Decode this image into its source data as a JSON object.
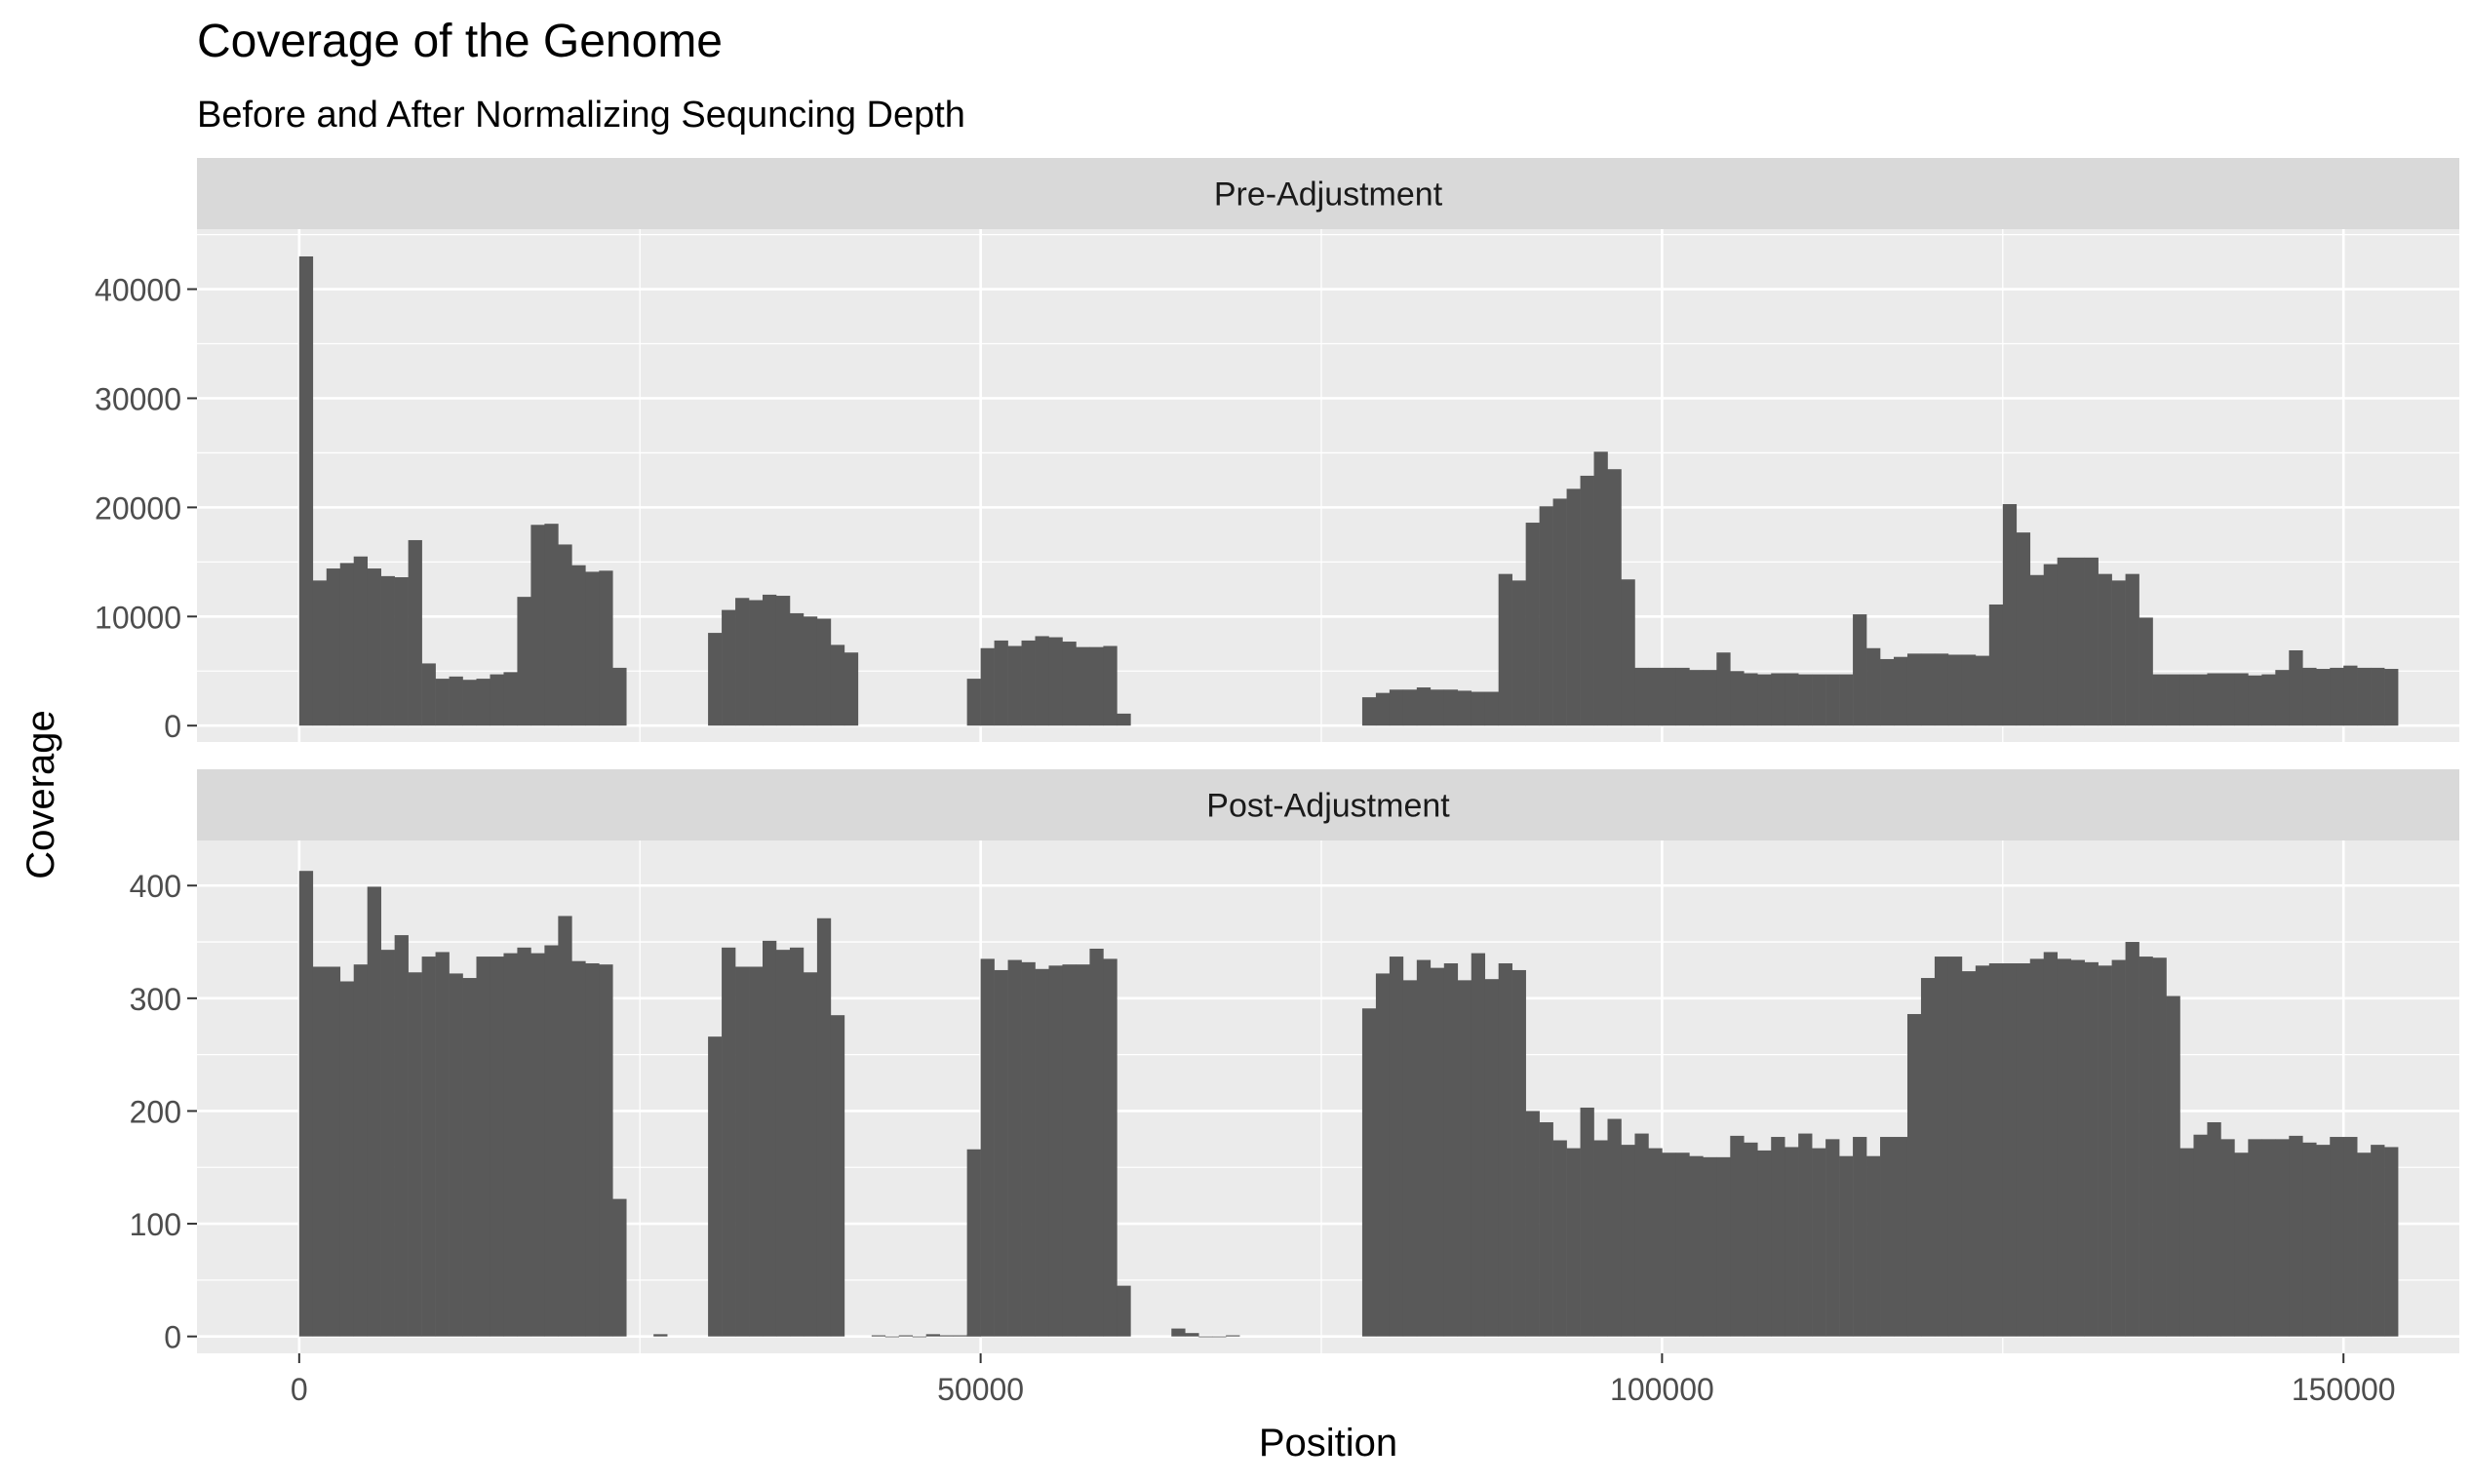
{
  "colors": {
    "panel_background": "#ebebeb",
    "strip_background": "#d9d9d9",
    "grid_line": "#ffffff",
    "bar_fill": "#595959",
    "tick_label": "#4d4d4d",
    "text": "#000000"
  },
  "chart_data": {
    "type": "bar",
    "title": "Coverage of the Genome",
    "subtitle": "Before and After Normalizing Sequncing Depth",
    "xlabel": "Position",
    "ylabel": "Coverage",
    "grid": true,
    "facet_layout": "stacked-vertically",
    "bin_width": 1000,
    "xlim": [
      -7500,
      158500
    ],
    "x_ticks": [
      0,
      50000,
      100000,
      150000
    ],
    "x_tick_labels": [
      "0",
      "50000",
      "100000",
      "150000"
    ],
    "panels": [
      {
        "name": "Pre-Adjustment",
        "ylim": [
          -1500,
          45500
        ],
        "y_ticks": [
          0,
          10000,
          20000,
          30000,
          40000
        ],
        "y_tick_labels": [
          "0",
          "10000",
          "20000",
          "30000",
          "40000"
        ],
        "segments": [
          {
            "x_start": 0,
            "values": [
              43000,
              13300,
              14400,
              14900,
              15500,
              14400,
              13700,
              13600,
              17000,
              5700,
              4300,
              4500,
              4200,
              4300,
              4700,
              4900,
              11800,
              18400,
              18500,
              16600,
              14700,
              14100,
              14200,
              5300
            ]
          },
          {
            "x_start": 30000,
            "values": [
              8500,
              10600,
              11700,
              11500,
              12000,
              11900,
              10300,
              10000,
              9800,
              7400,
              6700
            ]
          },
          {
            "x_start": 49000,
            "values": [
              4300,
              7100,
              7800,
              7300,
              7800,
              8200,
              8100,
              7700,
              7200,
              7200,
              7300,
              1100
            ]
          },
          {
            "x_start": 78000,
            "values": [
              2600,
              3000,
              3300,
              3300,
              3500,
              3300,
              3300,
              3200,
              3100,
              3100,
              13900,
              13300,
              18600,
              20100,
              20800,
              21700,
              22900,
              25100,
              23500,
              13400,
              5300,
              5300,
              5300,
              5300,
              5100,
              5100,
              6700,
              5000,
              4800,
              4700,
              4800,
              4800,
              4700,
              4700,
              4700,
              4700,
              10200,
              7100,
              6100,
              6300,
              6600,
              6600,
              6600,
              6500,
              6500,
              6400,
              11100,
              20300,
              17700,
              13800,
              14800,
              15400,
              15400,
              15400,
              13900,
              13300,
              13900,
              9900,
              4700,
              4700,
              4700,
              4700,
              4800,
              4800,
              4800,
              4600,
              4700,
              5100,
              6900,
              5300,
              5200,
              5300,
              5500,
              5300,
              5300,
              5200
            ]
          }
        ]
      },
      {
        "name": "Post-Adjustment",
        "ylim": [
          -15,
          440
        ],
        "y_ticks": [
          0,
          100,
          200,
          300,
          400
        ],
        "y_tick_labels": [
          "0",
          "100",
          "200",
          "300",
          "400"
        ],
        "segments": [
          {
            "x_start": 0,
            "values": [
              413,
              328,
              328,
              315,
              330,
              399,
              343,
              356,
              323,
              337,
              341,
              322,
              318,
              337,
              337,
              340,
              345,
              340,
              347,
              373,
              333,
              331,
              330,
              122
            ]
          },
          {
            "x_start": 26000,
            "values": [
              2
            ]
          },
          {
            "x_start": 30000,
            "values": [
              266,
              345,
              328,
              328,
              351,
              343,
              345,
              323,
              371,
              285
            ]
          },
          {
            "x_start": 42000,
            "values": [
              1,
              0,
              1,
              0,
              2,
              1,
              1,
              2
            ]
          },
          {
            "x_start": 49000,
            "values": [
              166,
              335,
              325,
              334,
              332,
              326,
              329,
              330,
              330,
              344,
              335,
              45
            ]
          },
          {
            "x_start": 64000,
            "values": [
              7,
              3,
              0,
              0,
              1
            ]
          },
          {
            "x_start": 78000,
            "values": [
              291,
              322,
              337,
              316,
              334,
              327,
              331,
              316,
              340,
              317,
              331,
              325,
              200,
              190,
              174,
              167,
              203,
              174,
              193,
              170,
              180,
              167,
              163,
              163,
              160,
              159,
              159,
              178,
              172,
              165,
              177,
              168,
              180,
              167,
              175,
              160,
              177,
              160,
              177,
              177,
              286,
              318,
              337,
              337,
              324,
              329,
              331,
              331,
              331,
              335,
              341,
              335,
              334,
              332,
              329,
              334,
              350,
              337,
              336,
              302,
              167,
              179,
              190,
              175,
              163,
              175,
              175,
              175,
              178,
              172,
              170,
              177,
              177,
              163,
              170,
              168
            ]
          }
        ]
      }
    ]
  }
}
